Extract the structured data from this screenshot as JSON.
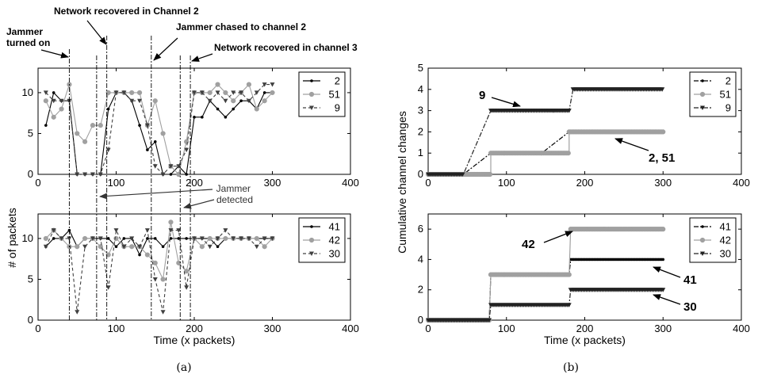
{
  "chart_data": [
    {
      "id": "a-top",
      "type": "line",
      "xlim": [
        0,
        400
      ],
      "ylim": [
        0,
        13
      ],
      "xticks": [
        0,
        100,
        200,
        300,
        400
      ],
      "yticks": [
        0,
        5,
        10
      ],
      "series": [
        {
          "name": "2",
          "color": "#000000",
          "dash": "",
          "marker": "dot",
          "x": [
            10,
            20,
            30,
            40,
            50,
            60,
            70,
            80,
            90,
            100,
            110,
            120,
            130,
            140,
            150,
            160,
            170,
            180,
            190,
            200,
            210,
            220,
            230,
            240,
            250,
            260,
            270,
            280,
            290,
            300
          ],
          "y": [
            6,
            10,
            9,
            9,
            0,
            0,
            0,
            0,
            8,
            10,
            10,
            9,
            6,
            3,
            4,
            0,
            0,
            1,
            0,
            7,
            7,
            9,
            8,
            7,
            8,
            9,
            9,
            8,
            10,
            10
          ]
        },
        {
          "name": "51",
          "color": "#a0a0a0",
          "dash": "",
          "marker": "circle",
          "x": [
            10,
            20,
            30,
            40,
            50,
            60,
            70,
            80,
            90,
            100,
            110,
            120,
            130,
            140,
            150,
            160,
            170,
            180,
            190,
            200,
            210,
            220,
            230,
            240,
            250,
            260,
            270,
            280,
            290,
            300
          ],
          "y": [
            9,
            7,
            8,
            11,
            5,
            4,
            6,
            6,
            10,
            10,
            10,
            10,
            10,
            6,
            9,
            5,
            1,
            0,
            4,
            10,
            10,
            10,
            11,
            10,
            9,
            10,
            11,
            8,
            9,
            10
          ]
        },
        {
          "name": "9",
          "color": "#404040",
          "dash": "4,3",
          "marker": "triangle",
          "x": [
            10,
            20,
            30,
            40,
            50,
            60,
            70,
            80,
            90,
            100,
            110,
            120,
            130,
            140,
            150,
            160,
            170,
            180,
            190,
            200,
            210,
            220,
            230,
            240,
            250,
            260,
            270,
            280,
            290,
            300
          ],
          "y": [
            10,
            9,
            9,
            9,
            0,
            0,
            0,
            0,
            3,
            10,
            10,
            9,
            9,
            6,
            1,
            0,
            1,
            1,
            3,
            10,
            10,
            9,
            10,
            9,
            10,
            10,
            9,
            10,
            11,
            11
          ]
        }
      ]
    },
    {
      "id": "a-bottom",
      "type": "line",
      "xlim": [
        0,
        400
      ],
      "ylim": [
        0,
        13
      ],
      "xticks": [
        0,
        100,
        200,
        300,
        400
      ],
      "yticks": [
        0,
        5,
        10
      ],
      "xlabel": "Time (x packets)",
      "series": [
        {
          "name": "41",
          "color": "#000000",
          "dash": "",
          "marker": "dot",
          "x": [
            10,
            20,
            30,
            40,
            50,
            60,
            70,
            80,
            90,
            100,
            110,
            120,
            130,
            140,
            150,
            160,
            170,
            180,
            190,
            200,
            210,
            220,
            230,
            240,
            250,
            260,
            270,
            280,
            290,
            300
          ],
          "y": [
            9,
            10,
            10,
            11,
            9,
            10,
            10,
            10,
            10,
            9,
            10,
            10,
            8,
            10,
            10,
            9,
            10,
            10,
            10,
            10,
            10,
            10,
            9,
            10,
            10,
            10,
            10,
            10,
            10,
            10
          ]
        },
        {
          "name": "42",
          "color": "#a0a0a0",
          "dash": "",
          "marker": "circle",
          "x": [
            10,
            20,
            30,
            40,
            50,
            60,
            70,
            80,
            90,
            100,
            110,
            120,
            130,
            140,
            150,
            160,
            170,
            180,
            190,
            200,
            210,
            220,
            230,
            240,
            250,
            260,
            270,
            280,
            290,
            300
          ],
          "y": [
            10,
            11,
            10,
            9,
            9,
            10,
            10,
            9,
            8,
            10,
            9,
            9,
            9,
            8,
            7,
            5,
            12,
            7,
            6,
            10,
            9,
            10,
            10,
            10,
            10,
            10,
            10,
            10,
            9,
            10
          ]
        },
        {
          "name": "30",
          "color": "#404040",
          "dash": "4,3",
          "marker": "triangle",
          "x": [
            10,
            20,
            30,
            40,
            50,
            60,
            70,
            80,
            90,
            100,
            110,
            120,
            130,
            140,
            150,
            160,
            170,
            180,
            190,
            200,
            210,
            220,
            230,
            240,
            250,
            260,
            270,
            280,
            290,
            300
          ],
          "y": [
            9,
            11,
            10,
            10,
            1,
            9,
            10,
            10,
            4,
            11,
            9,
            10,
            9,
            11,
            5,
            1,
            11,
            11,
            4,
            10,
            10,
            9,
            10,
            11,
            10,
            10,
            10,
            9,
            10,
            10
          ]
        }
      ]
    },
    {
      "id": "b-top",
      "type": "line",
      "xlim": [
        0,
        400
      ],
      "ylim": [
        0,
        5
      ],
      "xticks": [
        0,
        100,
        200,
        300,
        400
      ],
      "yticks": [
        0,
        1,
        2,
        3,
        4,
        5
      ],
      "series": [
        {
          "name": "2",
          "color": "#000000",
          "dash": "6,2,2,2",
          "marker": "dot",
          "step": true,
          "x": [
            0,
            45,
            80,
            80,
            145,
            180,
            180,
            300
          ],
          "y": [
            0,
            0,
            1,
            1,
            1,
            2,
            2,
            2
          ]
        },
        {
          "name": "51",
          "color": "#a0a0a0",
          "dash": "",
          "marker": "circle",
          "step": true,
          "x": [
            0,
            45,
            80,
            80,
            145,
            180,
            180,
            300
          ],
          "y": [
            0,
            0,
            0,
            1,
            1,
            1,
            2,
            2
          ]
        },
        {
          "name": "9",
          "color": "#222222",
          "dash": "6,2,2,2",
          "marker": "triangle",
          "step": true,
          "x": [
            0,
            45,
            80,
            160,
            180,
            185,
            300
          ],
          "y": [
            0,
            0,
            3,
            3,
            3,
            4,
            4
          ]
        }
      ]
    },
    {
      "id": "b-bottom",
      "type": "line",
      "xlim": [
        0,
        400
      ],
      "ylim": [
        0,
        7
      ],
      "xticks": [
        0,
        100,
        200,
        300,
        400
      ],
      "yticks": [
        0,
        2,
        4,
        6
      ],
      "xlabel": "Time (x packets)",
      "series": [
        {
          "name": "41",
          "color": "#000000",
          "dash": "6,2,2,2",
          "marker": "dot",
          "step": true,
          "x": [
            0,
            78,
            80,
            180,
            182,
            300
          ],
          "y": [
            0,
            0,
            3,
            3,
            4,
            4
          ]
        },
        {
          "name": "42",
          "color": "#a0a0a0",
          "dash": "",
          "marker": "circle",
          "step": true,
          "x": [
            0,
            78,
            80,
            180,
            182,
            300
          ],
          "y": [
            0,
            0,
            3,
            3,
            6,
            6
          ]
        },
        {
          "name": "30",
          "color": "#222222",
          "dash": "6,2,2,2",
          "marker": "triangle",
          "step": true,
          "x": [
            0,
            78,
            80,
            180,
            182,
            300
          ],
          "y": [
            0,
            0,
            1,
            1,
            2,
            2
          ]
        }
      ]
    }
  ],
  "labels": {
    "ylabel_a": "# of packets",
    "ylabel_b": "Cumulative channel changes",
    "caption_a": "(a)",
    "caption_b": "(b)",
    "ann_jammer_on": "Jammer\nturned on",
    "ann_net_recovered_2": "Network  recovered in Channel 2",
    "ann_jammer_chased": "Jammer chased to channel 2",
    "ann_net_recovered_3": "Network recovered in channel 3",
    "ann_jammer_detected": "Jammer\ndetected",
    "ann_b9": "9",
    "ann_b2_51": "2, 51",
    "ann_b42": "42",
    "ann_b41": "41",
    "ann_b30": "30"
  },
  "vlines_a": [
    40,
    75,
    88,
    145,
    182,
    195
  ]
}
